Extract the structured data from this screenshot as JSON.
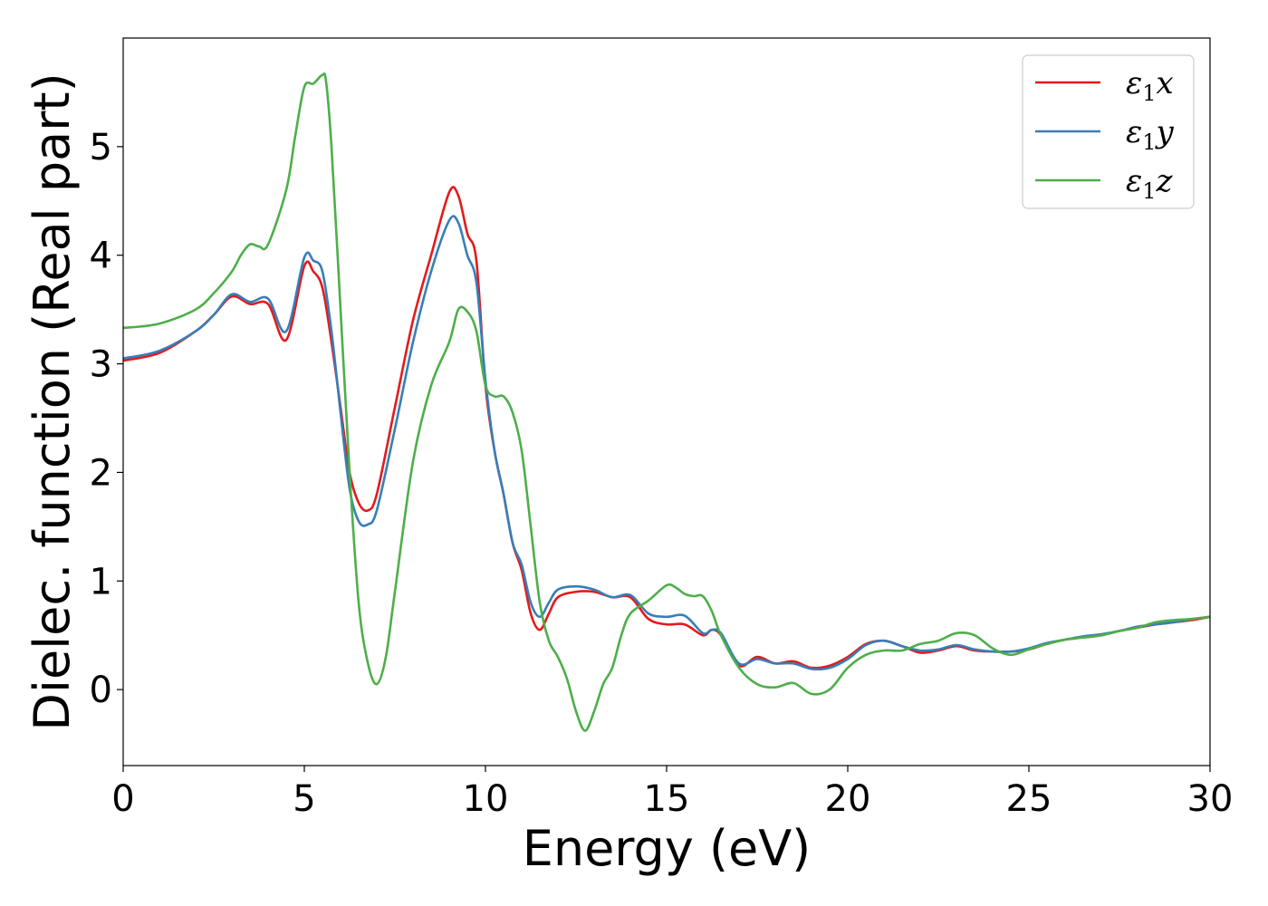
{
  "chart_data": {
    "type": "line",
    "xlabel": "Energy (eV)",
    "ylabel": "Dielec. function (Real part)",
    "xlim": [
      0,
      30
    ],
    "ylim": [
      -0.7,
      6.0
    ],
    "xticks": [
      0,
      5,
      10,
      15,
      20,
      25,
      30
    ],
    "yticks": [
      0,
      1,
      2,
      3,
      4,
      5
    ],
    "grid": false,
    "legend_position": "top-right",
    "series": [
      {
        "name": "ε1x",
        "name_parts": {
          "base": "ε",
          "sub": "1",
          "axis": "x"
        },
        "color": "#e41a1c",
        "x": [
          0,
          1,
          2,
          2.5,
          3,
          3.5,
          4,
          4.5,
          5,
          5.25,
          5.5,
          5.75,
          6,
          6.25,
          6.5,
          6.75,
          7,
          7.5,
          8,
          8.5,
          9,
          9.25,
          9.5,
          9.75,
          10,
          10.25,
          10.5,
          10.75,
          11,
          11.25,
          11.5,
          11.75,
          12,
          12.5,
          13,
          13.5,
          14,
          14.5,
          15,
          15.5,
          16,
          16.25,
          16.5,
          17,
          17.5,
          18,
          18.5,
          19,
          19.5,
          20,
          20.5,
          21,
          21.5,
          22,
          22.5,
          23,
          23.5,
          24,
          24.5,
          25,
          25.5,
          26,
          26.5,
          27,
          27.5,
          28,
          28.5,
          29,
          29.5,
          30
        ],
        "values": [
          3.03,
          3.1,
          3.3,
          3.45,
          3.62,
          3.55,
          3.55,
          3.22,
          3.9,
          3.85,
          3.7,
          3.2,
          2.6,
          2.0,
          1.72,
          1.65,
          1.8,
          2.6,
          3.4,
          4.0,
          4.58,
          4.55,
          4.2,
          3.95,
          2.8,
          2.2,
          1.8,
          1.35,
          1.1,
          0.7,
          0.55,
          0.7,
          0.85,
          0.9,
          0.9,
          0.85,
          0.85,
          0.65,
          0.6,
          0.6,
          0.5,
          0.55,
          0.5,
          0.22,
          0.3,
          0.24,
          0.26,
          0.2,
          0.22,
          0.3,
          0.42,
          0.45,
          0.4,
          0.34,
          0.36,
          0.4,
          0.36,
          0.35,
          0.35,
          0.37,
          0.42,
          0.46,
          0.48,
          0.5,
          0.54,
          0.57,
          0.6,
          0.62,
          0.64,
          0.67
        ]
      },
      {
        "name": "ε1y",
        "name_parts": {
          "base": "ε",
          "sub": "1",
          "axis": "y"
        },
        "color": "#377eb8",
        "x": [
          0,
          1,
          2,
          2.5,
          3,
          3.5,
          4,
          4.5,
          5,
          5.25,
          5.5,
          5.75,
          6,
          6.25,
          6.5,
          6.75,
          7,
          7.5,
          8,
          8.5,
          9,
          9.25,
          9.5,
          9.75,
          10,
          10.25,
          10.5,
          10.75,
          11,
          11.25,
          11.5,
          11.75,
          12,
          12.5,
          13,
          13.5,
          14,
          14.5,
          15,
          15.5,
          16,
          16.25,
          16.5,
          17,
          17.5,
          18,
          18.5,
          19,
          19.5,
          20,
          20.5,
          21,
          21.5,
          22,
          22.5,
          23,
          23.5,
          24,
          24.5,
          25,
          25.5,
          26,
          26.5,
          27,
          27.5,
          28,
          28.5,
          29,
          29.5,
          30
        ],
        "values": [
          3.05,
          3.12,
          3.3,
          3.45,
          3.64,
          3.57,
          3.6,
          3.3,
          3.98,
          3.95,
          3.85,
          3.3,
          2.55,
          1.85,
          1.55,
          1.52,
          1.65,
          2.4,
          3.2,
          3.85,
          4.32,
          4.3,
          4.0,
          3.75,
          2.85,
          2.2,
          1.8,
          1.35,
          1.15,
          0.8,
          0.67,
          0.8,
          0.92,
          0.95,
          0.92,
          0.85,
          0.87,
          0.7,
          0.67,
          0.68,
          0.52,
          0.55,
          0.52,
          0.24,
          0.28,
          0.24,
          0.24,
          0.19,
          0.2,
          0.28,
          0.41,
          0.45,
          0.4,
          0.36,
          0.37,
          0.41,
          0.37,
          0.35,
          0.35,
          0.38,
          0.43,
          0.46,
          0.49,
          0.51,
          0.54,
          0.58,
          0.6,
          0.62,
          0.65,
          0.67
        ]
      },
      {
        "name": "ε1z",
        "name_parts": {
          "base": "ε",
          "sub": "1",
          "axis": "z"
        },
        "color": "#4daf4a",
        "x": [
          0,
          1,
          2,
          2.5,
          3,
          3.25,
          3.5,
          3.75,
          4,
          4.5,
          4.75,
          5,
          5.25,
          5.5,
          5.6,
          5.75,
          6,
          6.25,
          6.5,
          6.75,
          7,
          7.25,
          7.5,
          8,
          8.5,
          9,
          9.25,
          9.5,
          9.75,
          10,
          10.25,
          10.5,
          10.75,
          11,
          11.25,
          11.5,
          11.75,
          12,
          12.25,
          12.5,
          12.75,
          13,
          13.25,
          13.5,
          13.75,
          14,
          14.5,
          15,
          15.25,
          15.5,
          15.75,
          16,
          16.25,
          16.5,
          17,
          17.5,
          18,
          18.5,
          19,
          19.5,
          20,
          20.5,
          21,
          21.5,
          22,
          22.5,
          23,
          23.5,
          24,
          24.5,
          25,
          25.5,
          26,
          26.5,
          27,
          27.5,
          28,
          28.5,
          29,
          29.5,
          30
        ],
        "values": [
          3.33,
          3.37,
          3.5,
          3.65,
          3.85,
          4.0,
          4.1,
          4.08,
          4.1,
          4.6,
          5.1,
          5.55,
          5.58,
          5.66,
          5.6,
          5.0,
          3.5,
          2.0,
          0.8,
          0.25,
          0.05,
          0.3,
          0.9,
          2.1,
          2.8,
          3.2,
          3.5,
          3.48,
          3.3,
          2.8,
          2.7,
          2.7,
          2.55,
          2.2,
          1.5,
          0.8,
          0.45,
          0.3,
          0.1,
          -0.2,
          -0.38,
          -0.2,
          0.05,
          0.2,
          0.5,
          0.7,
          0.82,
          0.96,
          0.94,
          0.88,
          0.86,
          0.86,
          0.72,
          0.5,
          0.2,
          0.05,
          0.02,
          0.06,
          -0.04,
          0.0,
          0.2,
          0.32,
          0.36,
          0.36,
          0.42,
          0.45,
          0.52,
          0.5,
          0.38,
          0.32,
          0.37,
          0.42,
          0.46,
          0.48,
          0.5,
          0.54,
          0.57,
          0.62,
          0.64,
          0.65,
          0.67
        ]
      }
    ]
  }
}
